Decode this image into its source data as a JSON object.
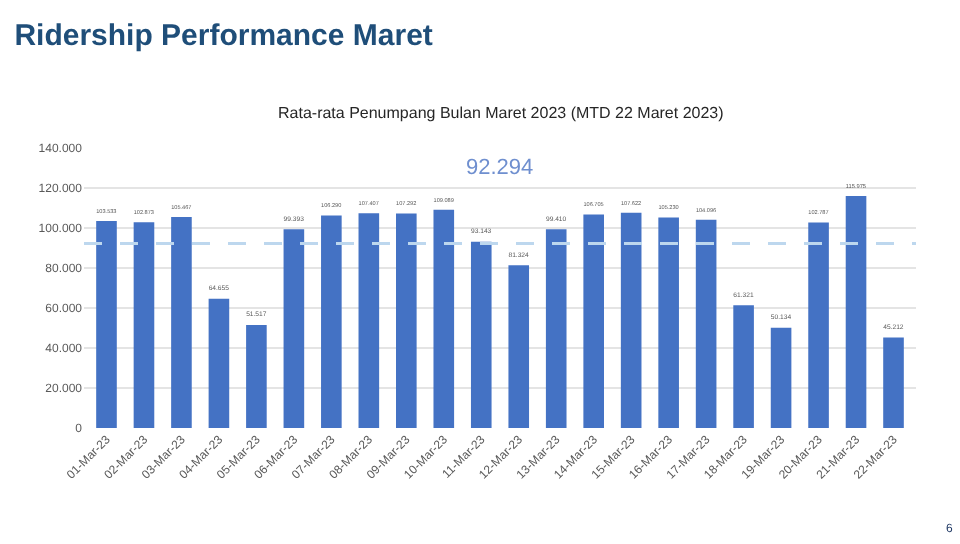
{
  "chart_data": {
    "type": "bar",
    "title": "Ridership Performance Maret",
    "subtitle": "Rata-rata Penumpang Bulan Maret 2023 (MTD 22 Maret 2023)",
    "categories": [
      "01-Mar-23",
      "02-Mar-23",
      "03-Mar-23",
      "04-Mar-23",
      "05-Mar-23",
      "06-Mar-23",
      "07-Mar-23",
      "08-Mar-23",
      "09-Mar-23",
      "10-Mar-23",
      "11-Mar-23",
      "12-Mar-23",
      "13-Mar-23",
      "14-Mar-23",
      "15-Mar-23",
      "16-Mar-23",
      "17-Mar-23",
      "18-Mar-23",
      "19-Mar-23",
      "20-Mar-23",
      "21-Mar-23",
      "22-Mar-23"
    ],
    "values": [
      103533,
      102873,
      105467,
      64655,
      51517,
      99393,
      106290,
      107407,
      107292,
      109089,
      93143,
      81324,
      99410,
      106705,
      107622,
      105230,
      104096,
      61321,
      50134,
      102787,
      115975,
      45212
    ],
    "value_labels": [
      "103.533",
      "102.873",
      "105.467",
      "64.655",
      "51.517",
      "99.393",
      "106.290",
      "107.407",
      "107.292",
      "109.089",
      "93.143",
      "81.324",
      "99.410",
      "106.705",
      "107.622",
      "105.230",
      "104.096",
      "61.321",
      "50.134",
      "102.787",
      "115.975",
      "45.212"
    ],
    "color": "#4472c4",
    "ylim": [
      0,
      140000
    ],
    "yticks": [
      0,
      {
        "value": 20000,
        "label": "20.000"
      },
      {
        "value": 40000,
        "label": "40.000"
      },
      {
        "value": 60000,
        "label": "60.000"
      },
      {
        "value": 80000,
        "label": "80.000"
      },
      {
        "value": 100000,
        "label": "100.000"
      },
      {
        "value": 120000,
        "label": "120.000"
      },
      {
        "value": 140000,
        "label": "140.000"
      }
    ],
    "grid": "y",
    "ref_lines": [
      {
        "axis": "y",
        "value": 92294,
        "label": "92.294",
        "color": "#bdd7ee",
        "line_style": "dashed"
      }
    ],
    "annotations": [
      "6"
    ]
  }
}
